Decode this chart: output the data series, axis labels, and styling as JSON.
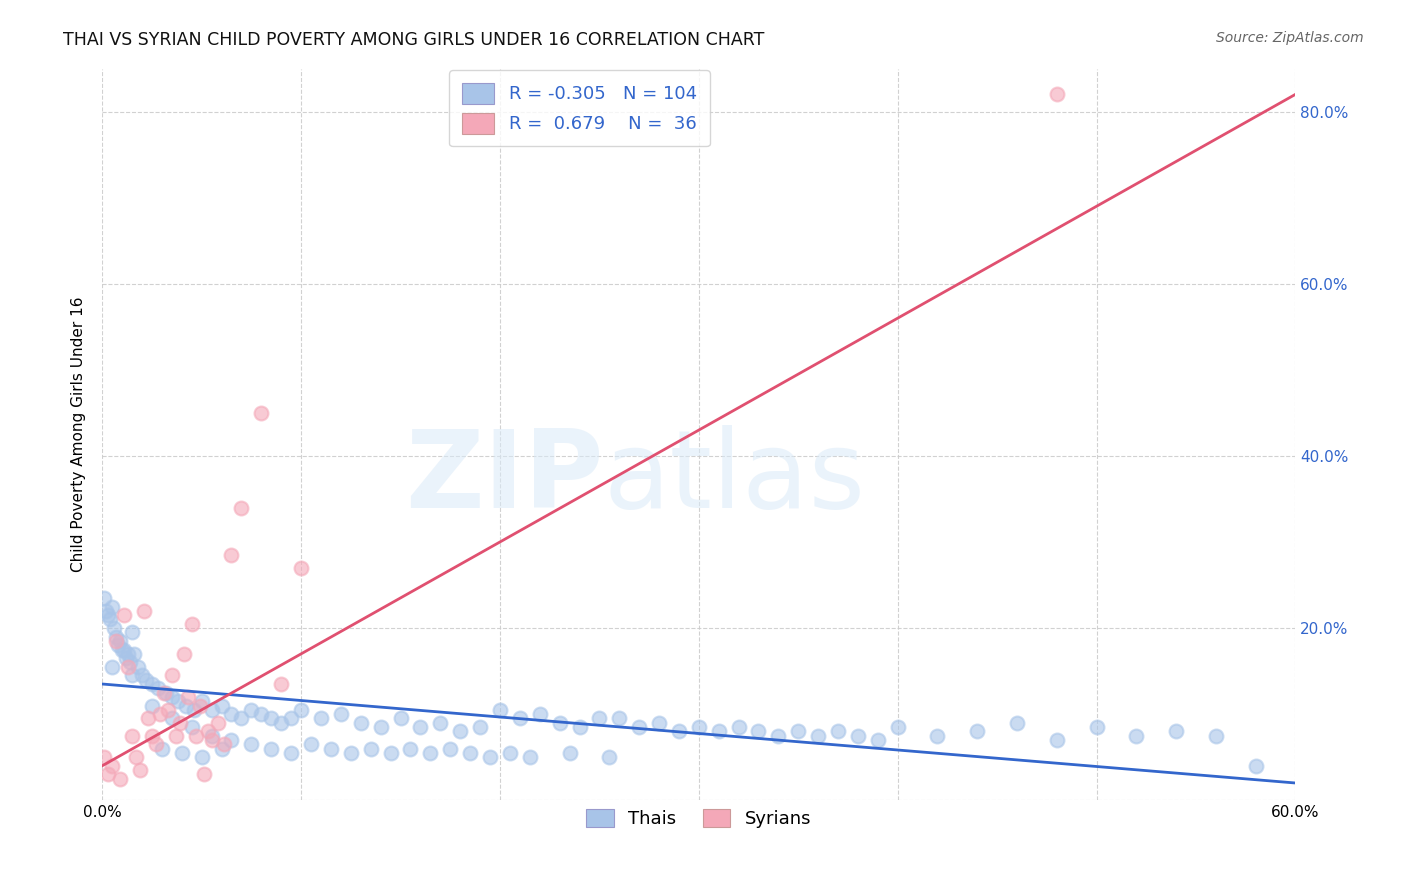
{
  "title": "THAI VS SYRIAN CHILD POVERTY AMONG GIRLS UNDER 16 CORRELATION CHART",
  "source": "Source: ZipAtlas.com",
  "ylabel": "Child Poverty Among Girls Under 16",
  "xlim": [
    0.0,
    0.6
  ],
  "ylim": [
    0.0,
    0.85
  ],
  "ytick_vals": [
    0.0,
    0.2,
    0.4,
    0.6,
    0.8
  ],
  "ytick_labels": [
    "",
    "20.0%",
    "40.0%",
    "60.0%",
    "80.0%"
  ],
  "xtick_vals": [
    0.0,
    0.1,
    0.2,
    0.3,
    0.4,
    0.5,
    0.6
  ],
  "xtick_labels": [
    "0.0%",
    "",
    "",
    "",
    "",
    "",
    "60.0%"
  ],
  "thai_color": "#A8C4E8",
  "syrian_color": "#F4A8B8",
  "thai_line_color": "#3366CC",
  "syrian_line_color": "#E05070",
  "thai_R": -0.305,
  "thai_N": 104,
  "syrian_R": 0.679,
  "syrian_N": 36,
  "watermark_zip": "ZIP",
  "watermark_atlas": "atlas",
  "background_color": "#ffffff",
  "grid_color": "#cccccc",
  "thai_line_x0": 0.0,
  "thai_line_y0": 0.135,
  "thai_line_x1": 0.6,
  "thai_line_y1": 0.02,
  "syrian_line_x0": 0.0,
  "syrian_line_y0": 0.04,
  "syrian_line_x1": 0.6,
  "syrian_line_y1": 0.82,
  "thai_x": [
    0.001,
    0.003,
    0.005,
    0.007,
    0.009,
    0.011,
    0.013,
    0.015,
    0.002,
    0.004,
    0.006,
    0.008,
    0.01,
    0.012,
    0.014,
    0.016,
    0.018,
    0.02,
    0.022,
    0.025,
    0.028,
    0.032,
    0.035,
    0.038,
    0.042,
    0.046,
    0.05,
    0.055,
    0.06,
    0.065,
    0.07,
    0.075,
    0.08,
    0.085,
    0.09,
    0.095,
    0.1,
    0.11,
    0.12,
    0.13,
    0.14,
    0.15,
    0.16,
    0.17,
    0.18,
    0.19,
    0.2,
    0.21,
    0.22,
    0.23,
    0.24,
    0.25,
    0.26,
    0.27,
    0.28,
    0.29,
    0.3,
    0.31,
    0.32,
    0.33,
    0.34,
    0.35,
    0.36,
    0.37,
    0.38,
    0.39,
    0.4,
    0.42,
    0.44,
    0.46,
    0.48,
    0.5,
    0.52,
    0.54,
    0.56,
    0.58,
    0.005,
    0.015,
    0.025,
    0.035,
    0.045,
    0.055,
    0.065,
    0.075,
    0.085,
    0.095,
    0.105,
    0.115,
    0.125,
    0.135,
    0.145,
    0.155,
    0.165,
    0.175,
    0.185,
    0.195,
    0.205,
    0.215,
    0.235,
    0.255,
    0.03,
    0.04,
    0.05,
    0.06
  ],
  "thai_y": [
    0.235,
    0.215,
    0.225,
    0.19,
    0.185,
    0.175,
    0.17,
    0.195,
    0.22,
    0.21,
    0.2,
    0.18,
    0.175,
    0.165,
    0.16,
    0.17,
    0.155,
    0.145,
    0.14,
    0.135,
    0.13,
    0.125,
    0.12,
    0.115,
    0.11,
    0.105,
    0.115,
    0.105,
    0.11,
    0.1,
    0.095,
    0.105,
    0.1,
    0.095,
    0.09,
    0.095,
    0.105,
    0.095,
    0.1,
    0.09,
    0.085,
    0.095,
    0.085,
    0.09,
    0.08,
    0.085,
    0.105,
    0.095,
    0.1,
    0.09,
    0.085,
    0.095,
    0.095,
    0.085,
    0.09,
    0.08,
    0.085,
    0.08,
    0.085,
    0.08,
    0.075,
    0.08,
    0.075,
    0.08,
    0.075,
    0.07,
    0.085,
    0.075,
    0.08,
    0.09,
    0.07,
    0.085,
    0.075,
    0.08,
    0.075,
    0.04,
    0.155,
    0.145,
    0.11,
    0.095,
    0.085,
    0.075,
    0.07,
    0.065,
    0.06,
    0.055,
    0.065,
    0.06,
    0.055,
    0.06,
    0.055,
    0.06,
    0.055,
    0.06,
    0.055,
    0.05,
    0.055,
    0.05,
    0.055,
    0.05,
    0.06,
    0.055,
    0.05,
    0.06
  ],
  "syrian_x": [
    0.001,
    0.003,
    0.005,
    0.007,
    0.009,
    0.011,
    0.013,
    0.015,
    0.017,
    0.019,
    0.021,
    0.023,
    0.025,
    0.027,
    0.029,
    0.031,
    0.033,
    0.035,
    0.037,
    0.039,
    0.041,
    0.043,
    0.045,
    0.047,
    0.049,
    0.051,
    0.053,
    0.055,
    0.058,
    0.061,
    0.065,
    0.07,
    0.08,
    0.09,
    0.1,
    0.48
  ],
  "syrian_y": [
    0.05,
    0.03,
    0.04,
    0.185,
    0.025,
    0.215,
    0.155,
    0.075,
    0.05,
    0.035,
    0.22,
    0.095,
    0.075,
    0.065,
    0.1,
    0.125,
    0.105,
    0.145,
    0.075,
    0.09,
    0.17,
    0.12,
    0.205,
    0.075,
    0.11,
    0.03,
    0.08,
    0.07,
    0.09,
    0.065,
    0.285,
    0.34,
    0.45,
    0.135,
    0.27,
    0.82
  ]
}
